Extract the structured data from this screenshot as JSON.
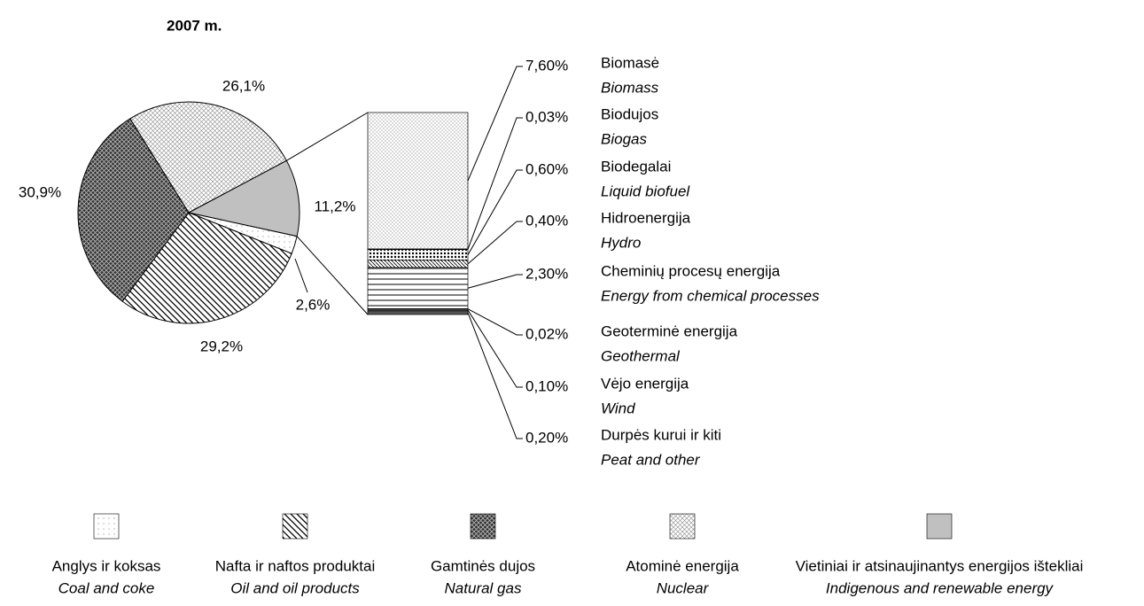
{
  "chart_data": {
    "type": "pie-of-bar",
    "title": "2007 m.",
    "categories": [
      "Anglys ir koksas",
      "Nafta ir naftos produktai",
      "Gamtinės dujos",
      "Atominė energija",
      "Vietiniai ir atsinaujinantys energijos ištekliai"
    ],
    "categories_en": [
      "Coal and coke",
      "Oil and oil products",
      "Natural gas",
      "Nuclear",
      "Indigenous and renewable energy"
    ],
    "values": [
      2.6,
      29.2,
      30.9,
      26.1,
      11.2
    ],
    "value_labels": [
      "2,6%",
      "29,2%",
      "30,9%",
      "26,1%",
      "11,2%"
    ],
    "breakdown": {
      "categories": [
        "Biomasė",
        "Biodujos",
        "Biodegalai",
        "Hidroenergija",
        "Cheminių procesų energija",
        "Geoterminė energija",
        "Vėjo energija",
        "Durpės kurui ir kiti"
      ],
      "categories_en": [
        "Biomass",
        "Biogas",
        "Liquid biofuel",
        "Hydro",
        "Energy from chemical processes",
        "Geothermal",
        "Wind",
        "Peat and other"
      ],
      "values": [
        7.6,
        0.03,
        0.6,
        0.4,
        2.3,
        0.02,
        0.1,
        0.2
      ],
      "value_labels": [
        "7,60%",
        "0,03%",
        "0,60%",
        "0,40%",
        "2,30%",
        "0,02%",
        "0,10%",
        "0,20%"
      ]
    }
  }
}
